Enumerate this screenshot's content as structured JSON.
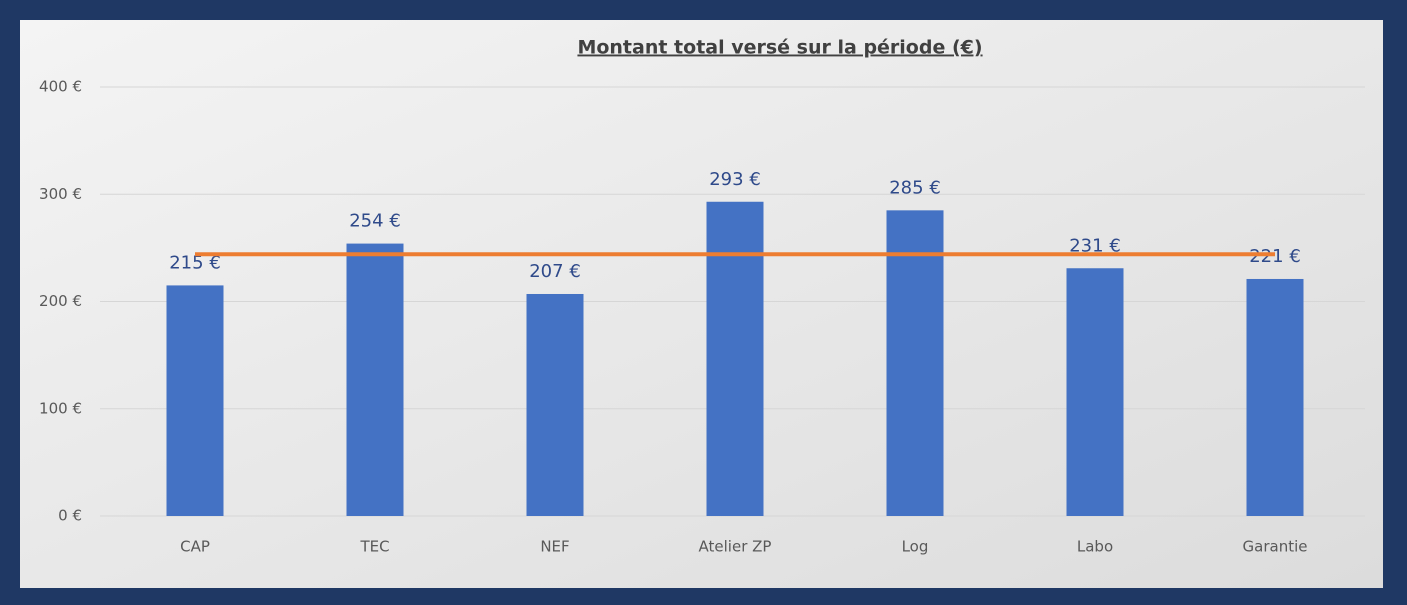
{
  "chart_data": {
    "type": "bar",
    "title": "Montant total versé sur la période (€)",
    "categories": [
      "CAP",
      "TEC",
      "NEF",
      "Atelier ZP",
      "Log",
      "Labo",
      "Garantie"
    ],
    "series": [
      {
        "type": "bar",
        "color": "#4472c4",
        "values": [
          215,
          254,
          207,
          293,
          285,
          231,
          221
        ],
        "value_labels": [
          "215 €",
          "254 €",
          "207 €",
          "293 €",
          "285 €",
          "231 €",
          "221 €"
        ]
      },
      {
        "type": "line",
        "color": "#ed7d31",
        "values": [
          244,
          244,
          244,
          244,
          244,
          244,
          244
        ]
      }
    ],
    "ylim": [
      0,
      400
    ],
    "yticks": [
      {
        "value": 0,
        "label": "0 €"
      },
      {
        "value": 100,
        "label": "100 €"
      },
      {
        "value": 200,
        "label": "200 €"
      },
      {
        "value": 300,
        "label": "300 €"
      },
      {
        "value": 400,
        "label": "400 €"
      }
    ],
    "grid": true
  }
}
